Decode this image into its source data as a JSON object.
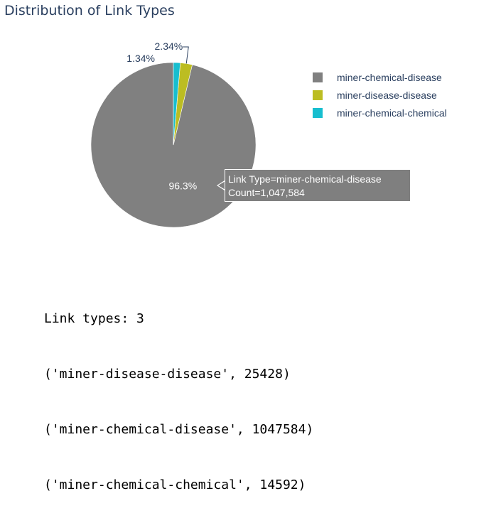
{
  "chart_data": {
    "type": "pie",
    "title": "Distribution of Link Types",
    "slices": [
      {
        "label": "miner-chemical-disease",
        "value": 1047584,
        "percent_label": "96.3%",
        "color": "#808080"
      },
      {
        "label": "miner-disease-disease",
        "value": 25428,
        "percent_label": "2.34%",
        "color": "#bcbd22"
      },
      {
        "label": "miner-chemical-chemical",
        "value": 14592,
        "percent_label": "1.34%",
        "color": "#17becf"
      }
    ],
    "legend_position": "right",
    "hover_tooltip": {
      "line1": "Link Type=miner-chemical-disease",
      "line2": "Count=1,047,584"
    }
  },
  "output": {
    "lines": [
      "Link types: 3",
      "('miner-disease-disease', 25428)",
      "('miner-chemical-disease', 1047584)",
      "('miner-chemical-chemical', 14592)"
    ]
  }
}
